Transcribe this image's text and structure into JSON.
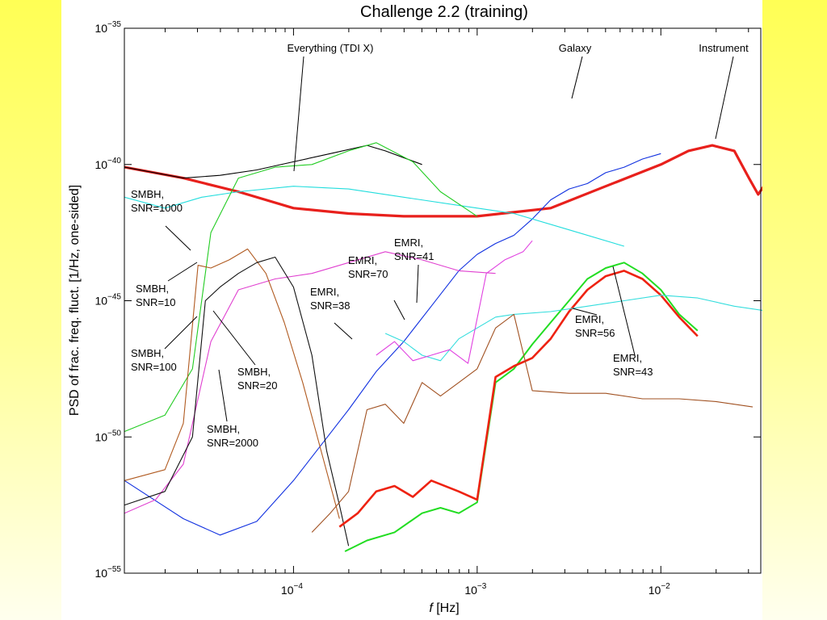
{
  "chart_data": {
    "type": "line",
    "title": "Challenge 2.2 (training)",
    "xlabel_italic": "f",
    "xlabel_rest": " [Hz]",
    "ylabel": "PSD of frac. freq. fluct. [1/Hz, one-sided]",
    "x_scale": "log",
    "y_scale": "log",
    "xlim": [
      1.2e-05,
      0.035
    ],
    "ylim": [
      1e-55,
      1e-35
    ],
    "x_ticks": [
      {
        "value": 0.0001,
        "label_base": "10",
        "label_exp": "−4"
      },
      {
        "value": 0.001,
        "label_base": "10",
        "label_exp": "−3"
      },
      {
        "value": 0.01,
        "label_base": "10",
        "label_exp": "−2"
      }
    ],
    "y_ticks": [
      {
        "value": 1e-35,
        "label_base": "10",
        "label_exp": "−35"
      },
      {
        "value": 1e-40,
        "label_base": "10",
        "label_exp": "−40"
      },
      {
        "value": 1e-45,
        "label_base": "10",
        "label_exp": "−45"
      },
      {
        "value": 1e-50,
        "label_base": "10",
        "label_exp": "−50"
      },
      {
        "value": 1e-55,
        "label_base": "10",
        "label_exp": "−55"
      }
    ],
    "grid": false,
    "series": [
      {
        "name": "Instrument",
        "color": "#e8201c",
        "width": 3.2,
        "points": [
          [
            -4.92,
            -40.1
          ],
          [
            -4.6,
            -40.5
          ],
          [
            -4.3,
            -41.0
          ],
          [
            -4.0,
            -41.6
          ],
          [
            -3.7,
            -41.8
          ],
          [
            -3.4,
            -41.9
          ],
          [
            -3.0,
            -41.9
          ],
          [
            -2.6,
            -41.6
          ],
          [
            -2.3,
            -40.8
          ],
          [
            -2.0,
            -40.0
          ],
          [
            -1.85,
            -39.5
          ],
          [
            -1.72,
            -39.3
          ],
          [
            -1.6,
            -39.5
          ],
          [
            -1.52,
            -40.5
          ],
          [
            -1.47,
            -41.1
          ],
          [
            -1.43,
            -40.7
          ],
          [
            -1.4,
            -40.3
          ]
        ]
      },
      {
        "name": "Everything (TDI X)",
        "color": "#000000",
        "width": 1.1,
        "points": [
          [
            -4.92,
            -40.1
          ],
          [
            -4.6,
            -40.5
          ],
          [
            -4.4,
            -40.4
          ],
          [
            -4.2,
            -40.2
          ],
          [
            -4.0,
            -39.9
          ],
          [
            -3.8,
            -39.6
          ],
          [
            -3.6,
            -39.3
          ],
          [
            -3.5,
            -39.5
          ],
          [
            -3.3,
            -40.0
          ]
        ]
      },
      {
        "name": "Galaxy",
        "color": "#1030e0",
        "width": 1.1,
        "points": [
          [
            -4.92,
            -51.6
          ],
          [
            -4.6,
            -53.0
          ],
          [
            -4.4,
            -53.6
          ],
          [
            -4.2,
            -53.1
          ],
          [
            -4.0,
            -51.6
          ],
          [
            -3.85,
            -50.3
          ],
          [
            -3.7,
            -49.0
          ],
          [
            -3.55,
            -47.6
          ],
          [
            -3.4,
            -46.5
          ],
          [
            -3.25,
            -45.2
          ],
          [
            -3.1,
            -43.9
          ],
          [
            -3.0,
            -43.3
          ],
          [
            -2.9,
            -42.9
          ],
          [
            -2.8,
            -42.6
          ],
          [
            -2.7,
            -42.0
          ],
          [
            -2.6,
            -41.3
          ],
          [
            -2.5,
            -40.9
          ],
          [
            -2.4,
            -40.7
          ],
          [
            -2.3,
            -40.3
          ],
          [
            -2.2,
            -40.1
          ],
          [
            -2.1,
            -39.8
          ],
          [
            -2.0,
            -39.6
          ]
        ]
      },
      {
        "name": "SMBH, SNR=1000",
        "color": "#22dddd",
        "width": 1.1,
        "points": [
          [
            -4.92,
            -41.2
          ],
          [
            -4.7,
            -41.6
          ],
          [
            -4.5,
            -41.2
          ],
          [
            -4.3,
            -41.0
          ],
          [
            -4.0,
            -40.8
          ],
          [
            -3.7,
            -40.9
          ],
          [
            -3.4,
            -41.2
          ],
          [
            -3.1,
            -41.5
          ],
          [
            -2.8,
            -41.8
          ],
          [
            -2.5,
            -42.4
          ],
          [
            -2.2,
            -43.0
          ]
        ]
      },
      {
        "name": "SMBH, SNR=2000",
        "color": "#22cc22",
        "width": 1.1,
        "points": [
          [
            -4.92,
            -49.8
          ],
          [
            -4.7,
            -49.2
          ],
          [
            -4.55,
            -47.5
          ],
          [
            -4.45,
            -42.5
          ],
          [
            -4.3,
            -40.5
          ],
          [
            -4.1,
            -40.1
          ],
          [
            -3.9,
            -40.0
          ],
          [
            -3.7,
            -39.5
          ],
          [
            -3.55,
            -39.2
          ],
          [
            -3.35,
            -39.9
          ],
          [
            -3.2,
            -41.0
          ],
          [
            -3.0,
            -41.9
          ]
        ]
      },
      {
        "name": "SMBH, SNR=100",
        "color": "#e040d0",
        "width": 1.1,
        "points": [
          [
            -4.92,
            -52.8
          ],
          [
            -4.75,
            -52.3
          ],
          [
            -4.6,
            -51.0
          ],
          [
            -4.45,
            -46.5
          ],
          [
            -4.3,
            -44.6
          ],
          [
            -4.1,
            -44.2
          ],
          [
            -3.9,
            -44.0
          ],
          [
            -3.7,
            -43.6
          ],
          [
            -3.5,
            -43.2
          ],
          [
            -3.3,
            -43.5
          ],
          [
            -3.1,
            -43.9
          ],
          [
            -2.9,
            -44.0
          ]
        ]
      },
      {
        "name": "SMBH, SNR=10",
        "color": "#b05a20",
        "width": 1.1,
        "points": [
          [
            -4.92,
            -51.6
          ],
          [
            -4.7,
            -51.2
          ],
          [
            -4.6,
            -49.5
          ],
          [
            -4.52,
            -43.7
          ],
          [
            -4.45,
            -43.8
          ],
          [
            -4.35,
            -43.5
          ],
          [
            -4.25,
            -43.1
          ],
          [
            -4.15,
            -44.0
          ],
          [
            -4.05,
            -45.8
          ],
          [
            -3.95,
            -48.0
          ],
          [
            -3.85,
            -50.5
          ],
          [
            -3.75,
            -53.0
          ]
        ]
      },
      {
        "name": "SMBH, SNR=20",
        "color": "#111111",
        "width": 1.1,
        "points": [
          [
            -4.92,
            -52.5
          ],
          [
            -4.7,
            -52.0
          ],
          [
            -4.55,
            -50.0
          ],
          [
            -4.48,
            -45.0
          ],
          [
            -4.4,
            -44.5
          ],
          [
            -4.3,
            -44.0
          ],
          [
            -4.2,
            -43.6
          ],
          [
            -4.1,
            -43.4
          ],
          [
            -4.0,
            -44.5
          ],
          [
            -3.9,
            -47.0
          ],
          [
            -3.82,
            -50.5
          ],
          [
            -3.75,
            -52.5
          ],
          [
            -3.7,
            -54.0
          ]
        ]
      },
      {
        "name": "EMRI, SNR=56",
        "color": "#22dd22",
        "width": 2.0,
        "points": [
          [
            -3.72,
            -54.2
          ],
          [
            -3.6,
            -53.8
          ],
          [
            -3.45,
            -53.5
          ],
          [
            -3.3,
            -52.8
          ],
          [
            -3.2,
            -52.6
          ],
          [
            -3.1,
            -52.8
          ],
          [
            -3.0,
            -52.4
          ],
          [
            -2.9,
            -48.0
          ],
          [
            -2.8,
            -47.5
          ],
          [
            -2.7,
            -46.6
          ],
          [
            -2.6,
            -45.8
          ],
          [
            -2.5,
            -45.0
          ],
          [
            -2.4,
            -44.2
          ],
          [
            -2.3,
            -43.8
          ],
          [
            -2.2,
            -43.6
          ],
          [
            -2.1,
            -44.0
          ],
          [
            -2.0,
            -44.6
          ],
          [
            -1.9,
            -45.5
          ],
          [
            -1.8,
            -46.1
          ]
        ]
      },
      {
        "name": "EMRI, SNR=43",
        "color": "#ee2211",
        "width": 2.6,
        "points": [
          [
            -3.75,
            -53.3
          ],
          [
            -3.65,
            -52.8
          ],
          [
            -3.55,
            -52.0
          ],
          [
            -3.45,
            -51.8
          ],
          [
            -3.35,
            -52.2
          ],
          [
            -3.25,
            -51.6
          ],
          [
            -3.1,
            -52.0
          ],
          [
            -3.0,
            -52.3
          ],
          [
            -2.9,
            -47.8
          ],
          [
            -2.8,
            -47.4
          ],
          [
            -2.7,
            -47.1
          ],
          [
            -2.6,
            -46.4
          ],
          [
            -2.5,
            -45.4
          ],
          [
            -2.4,
            -44.6
          ],
          [
            -2.3,
            -44.1
          ],
          [
            -2.2,
            -43.9
          ],
          [
            -2.1,
            -44.2
          ],
          [
            -2.0,
            -44.8
          ],
          [
            -1.9,
            -45.6
          ],
          [
            -1.8,
            -46.3
          ]
        ]
      },
      {
        "name": "EMRI, SNR=70",
        "color": "#33dddd",
        "width": 1.1,
        "points": [
          [
            -3.5,
            -46.2
          ],
          [
            -3.4,
            -46.5
          ],
          [
            -3.3,
            -47.0
          ],
          [
            -3.2,
            -47.2
          ],
          [
            -3.1,
            -46.4
          ],
          [
            -3.0,
            -46.0
          ],
          [
            -2.9,
            -45.6
          ],
          [
            -2.8,
            -45.5
          ],
          [
            -2.6,
            -45.4
          ],
          [
            -2.4,
            -45.2
          ],
          [
            -2.2,
            -45.0
          ],
          [
            -2.0,
            -44.8
          ],
          [
            -1.8,
            -44.9
          ],
          [
            -1.6,
            -45.2
          ],
          [
            -1.4,
            -45.4
          ]
        ]
      },
      {
        "name": "EMRI, SNR=41",
        "color": "#e040e0",
        "width": 1.1,
        "points": [
          [
            -3.55,
            -47.0
          ],
          [
            -3.45,
            -46.5
          ],
          [
            -3.35,
            -47.2
          ],
          [
            -3.25,
            -47.0
          ],
          [
            -3.15,
            -46.8
          ],
          [
            -3.05,
            -47.3
          ],
          [
            -2.95,
            -44.0
          ],
          [
            -2.85,
            -43.5
          ],
          [
            -2.75,
            -43.2
          ],
          [
            -2.7,
            -42.8
          ]
        ]
      },
      {
        "name": "EMRI, SNR=38",
        "color": "#a05020",
        "width": 1.1,
        "points": [
          [
            -3.9,
            -53.5
          ],
          [
            -3.8,
            -52.8
          ],
          [
            -3.7,
            -52.0
          ],
          [
            -3.6,
            -49.0
          ],
          [
            -3.5,
            -48.8
          ],
          [
            -3.4,
            -49.5
          ],
          [
            -3.3,
            -48.0
          ],
          [
            -3.2,
            -48.5
          ],
          [
            -3.1,
            -48.0
          ],
          [
            -3.0,
            -47.5
          ],
          [
            -2.9,
            -46.0
          ],
          [
            -2.8,
            -45.5
          ],
          [
            -2.7,
            -48.3
          ],
          [
            -2.5,
            -48.4
          ],
          [
            -2.3,
            -48.4
          ],
          [
            -2.1,
            -48.6
          ],
          [
            -1.9,
            -48.6
          ],
          [
            -1.7,
            -48.7
          ],
          [
            -1.5,
            -48.9
          ]
        ]
      }
    ],
    "annotations": [
      {
        "lines": [
          "Everything (TDI X)"
        ],
        "anchor": "middle"
      },
      {
        "lines": [
          "Galaxy"
        ],
        "anchor": "middle"
      },
      {
        "lines": [
          "Instrument"
        ],
        "anchor": "middle"
      },
      {
        "lines": [
          "SMBH,",
          "SNR=1000"
        ],
        "anchor": "start"
      },
      {
        "lines": [
          "SMBH,",
          "SNR=10"
        ],
        "anchor": "start"
      },
      {
        "lines": [
          "SMBH,",
          "SNR=100"
        ],
        "anchor": "start"
      },
      {
        "lines": [
          "SMBH,",
          "SNR=20"
        ],
        "anchor": "start"
      },
      {
        "lines": [
          "SMBH,",
          "SNR=2000"
        ],
        "anchor": "start"
      },
      {
        "lines": [
          "EMRI,",
          "SNR=38"
        ],
        "anchor": "start"
      },
      {
        "lines": [
          "EMRI,",
          "SNR=70"
        ],
        "anchor": "start"
      },
      {
        "lines": [
          "EMRI,",
          "SNR=41"
        ],
        "anchor": "start"
      },
      {
        "lines": [
          "EMRI,",
          "SNR=56"
        ],
        "anchor": "start"
      },
      {
        "lines": [
          "EMRI,",
          "SNR=43"
        ],
        "anchor": "start"
      }
    ]
  }
}
